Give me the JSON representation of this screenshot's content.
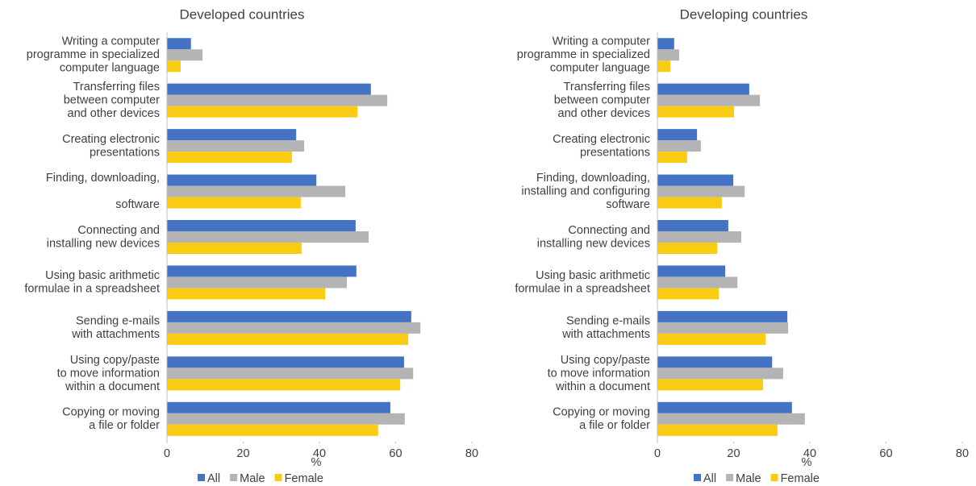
{
  "chart_data": [
    {
      "type": "bar",
      "orientation": "horizontal",
      "title": "Developed countries",
      "categories": [
        "Writing a computer\nprogramme in specialized\ncomputer language",
        "Transferring files\nbetween computer\nand other devices",
        "Creating electronic\npresentations",
        "Finding, downloading,\n\nsoftware",
        "Connecting and\ninstalling new devices",
        "Using basic arithmetic\nformulae in a spreadsheet",
        "Sending e-mails\nwith attachments",
        "Using copy/paste\nto move information\nwithin a document",
        "Copying or moving\na file or folder"
      ],
      "series": [
        {
          "name": "All",
          "color": "#4472c4",
          "values": [
            6.3,
            53.5,
            33.9,
            39.2,
            49.5,
            49.7,
            64.1,
            62.2,
            58.6
          ]
        },
        {
          "name": "Male",
          "color": "#b4b4b4",
          "values": [
            9.3,
            57.8,
            36,
            46.8,
            52.9,
            47.2,
            66.5,
            64.6,
            62.4
          ]
        },
        {
          "name": "Female",
          "color": "#f9cb12",
          "values": [
            3.6,
            50,
            32.8,
            35.1,
            35.3,
            41.5,
            63.3,
            61.2,
            55.4
          ]
        }
      ],
      "xlim": [
        0,
        80
      ],
      "xticks": [
        0,
        20,
        40,
        60,
        80
      ],
      "xlabel": "%",
      "legend": "bottom"
    },
    {
      "type": "bar",
      "orientation": "horizontal",
      "title": "Developing countries",
      "categories": [
        "Writing a computer\nprogramme in specialized\ncomputer language",
        "Transferring files\nbetween computer\nand other devices",
        "Creating electronic\npresentations",
        "Finding, downloading,\ninstalling and configuring\nsoftware",
        "Connecting and\ninstalling new devices",
        "Using basic arithmetic\nformulae in a spreadsheet",
        "Sending e-mails\nwith attachments",
        "Using copy/paste\nto move information\nwithin a document",
        "Copying or moving\na file or folder"
      ],
      "series": [
        {
          "name": "All",
          "color": "#4472c4",
          "values": [
            4.4,
            24.1,
            10.4,
            19.9,
            18.6,
            17.8,
            34.1,
            30.1,
            35.3
          ]
        },
        {
          "name": "Male",
          "color": "#b4b4b4",
          "values": [
            5.7,
            26.9,
            11.4,
            22.9,
            22,
            21,
            34.3,
            33,
            38.7
          ]
        },
        {
          "name": "Female",
          "color": "#f9cb12",
          "values": [
            3.4,
            20.1,
            7.8,
            16.9,
            15.7,
            16.1,
            28.4,
            27.7,
            31.5
          ]
        }
      ],
      "xlim": [
        0,
        80
      ],
      "xticks": [
        0,
        20,
        40,
        60,
        80
      ],
      "xlabel": "%",
      "legend": "bottom"
    }
  ]
}
